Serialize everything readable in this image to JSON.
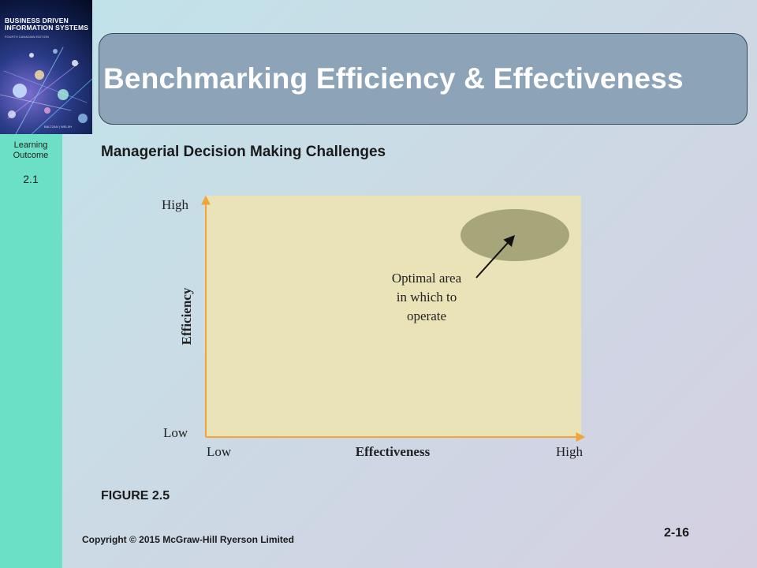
{
  "slide": {
    "title": "Benchmarking Efficiency & Effectiveness",
    "subtitle": "Managerial Decision Making Challenges",
    "figure_label": "FIGURE 2.5",
    "copyright": "Copyright © 2015 McGraw-Hill Ryerson Limited",
    "page_number": "2-16"
  },
  "sidebar": {
    "cover_title": "BUSINESS DRIVEN INFORMATION SYSTEMS",
    "cover_subtitle": "FOURTH CANADIAN EDITION",
    "cover_authors": "BALTZAN | WELSH",
    "learning_outcome_label": "Learning Outcome",
    "learning_outcome_number": "2.1"
  },
  "chart_data": {
    "type": "diagram",
    "xlabel": "Effectiveness",
    "ylabel": "Efficiency",
    "x_ticks": [
      "Low",
      "High"
    ],
    "y_ticks": [
      "Low",
      "High"
    ],
    "annotation": [
      "Optimal area",
      "in which to",
      "operate"
    ],
    "region_color": "#a6a67a",
    "plot_background": "#ebe3b8",
    "axis_color": "#f2a43a"
  }
}
